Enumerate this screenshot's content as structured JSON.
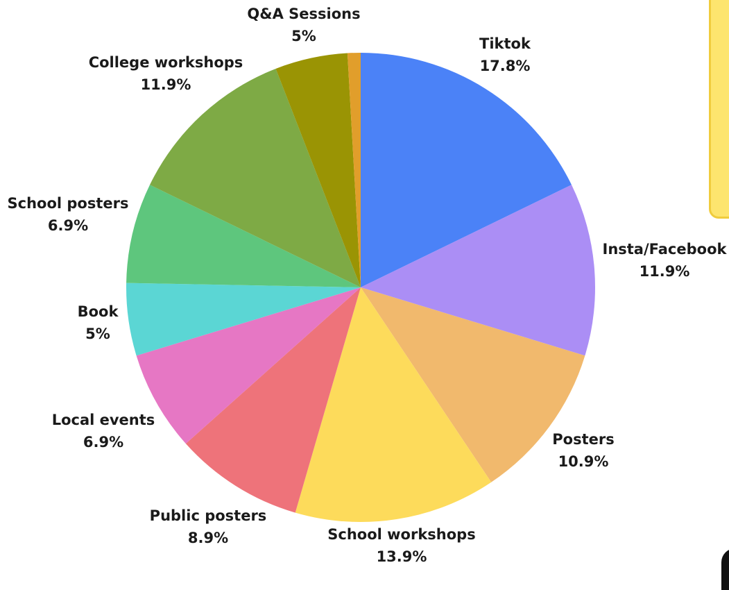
{
  "chart_data": {
    "type": "pie",
    "title": "",
    "start": "top, clockwise",
    "slices": [
      {
        "label": "Tiktok",
        "value": 17.8,
        "display": "17.8%",
        "color": "#4b82f7"
      },
      {
        "label": "Insta/Facebook",
        "value": 11.9,
        "display": "11.9%",
        "color": "#ab8ef5"
      },
      {
        "label": "Posters",
        "value": 10.9,
        "display": "10.9%",
        "color": "#f1b96d"
      },
      {
        "label": "School workshops",
        "value": 13.9,
        "display": "13.9%",
        "color": "#fddb5b"
      },
      {
        "label": "Public posters",
        "value": 8.9,
        "display": "8.9%",
        "color": "#ee737a"
      },
      {
        "label": "Local events",
        "value": 6.9,
        "display": "6.9%",
        "color": "#e677c4"
      },
      {
        "label": "Book",
        "value": 5,
        "display": "5%",
        "color": "#5bd6d4"
      },
      {
        "label": "School posters",
        "value": 6.9,
        "display": "6.9%",
        "color": "#5ec67d"
      },
      {
        "label": "College workshops",
        "value": 11.9,
        "display": "11.9%",
        "color": "#7eaa45"
      },
      {
        "label": "Q&A Sessions",
        "value": 5,
        "display": "5%",
        "color": "#9a9404"
      },
      {
        "label": "",
        "value": 0.9,
        "display": "",
        "color": "#e19e2b"
      }
    ]
  },
  "decor": {
    "card_color": "#fde56e",
    "card_border": "#f0cc3d"
  }
}
